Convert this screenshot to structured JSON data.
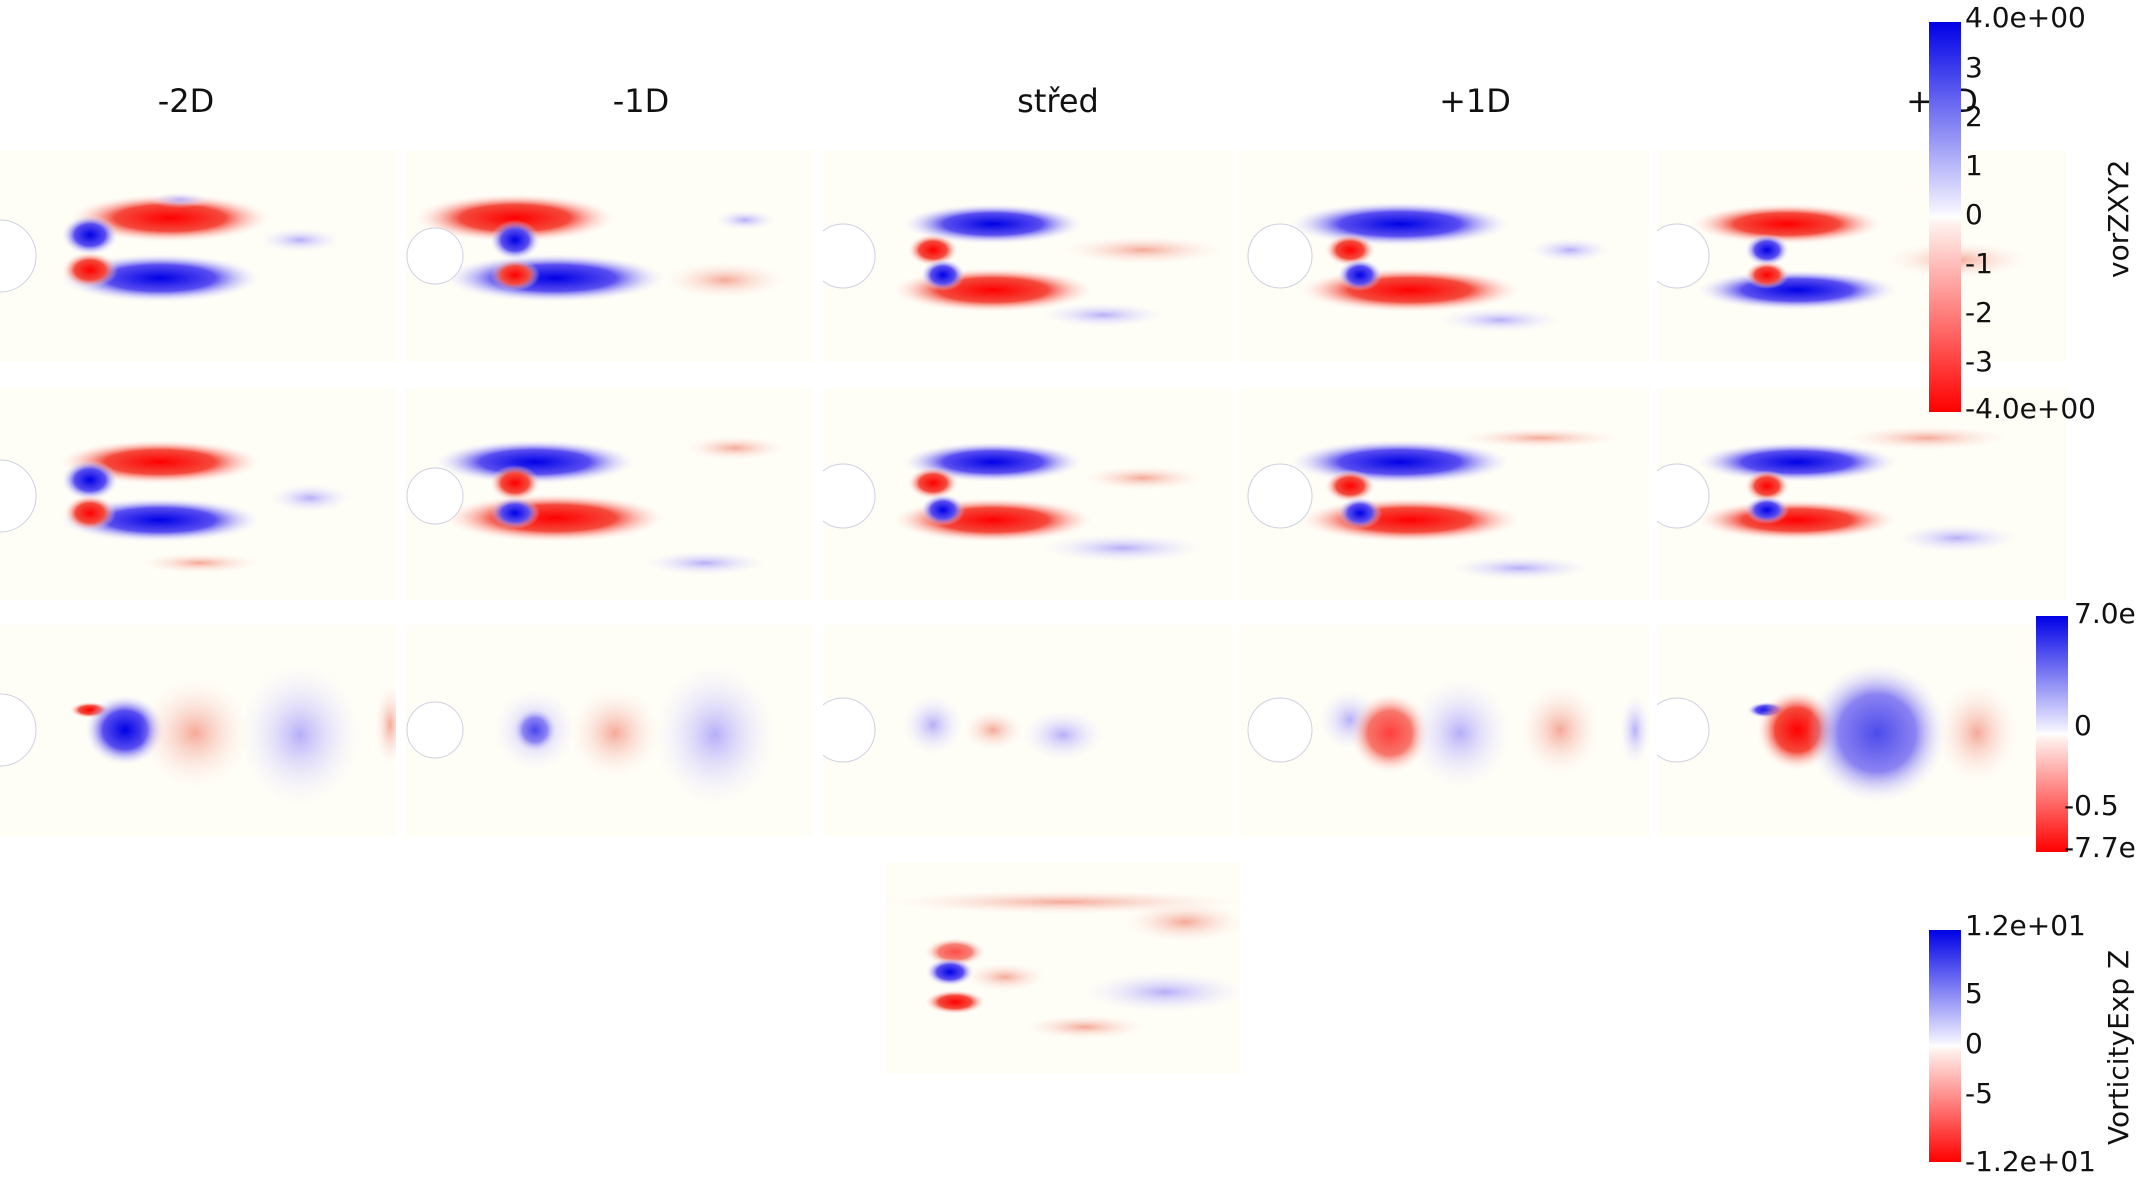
{
  "columns": [
    "-2D",
    "-1D",
    "střed",
    "+1D",
    "+2D"
  ],
  "colorbars": [
    {
      "title": "vorZXY2",
      "ticks": [
        "4.0e+00",
        "3",
        "2",
        "1",
        "0",
        "-1",
        "-2",
        "-3",
        "-4.0e+00"
      ],
      "range": [
        -4,
        4
      ]
    },
    {
      "title": "",
      "ticks": [
        "7.0e",
        "0",
        "-0.5",
        "-7.7e"
      ],
      "range": [
        -7.7,
        7.0
      ]
    },
    {
      "title": "VorticityExp Z",
      "ticks": [
        "1.2e+01",
        "5",
        "0",
        "-5",
        "-1.2e+01"
      ],
      "range": [
        -12,
        12
      ]
    }
  ],
  "colors": {
    "positive": "#0000e6",
    "negative": "#ff0000",
    "neutral": "#ffffff",
    "background": "#fefdf6"
  }
}
